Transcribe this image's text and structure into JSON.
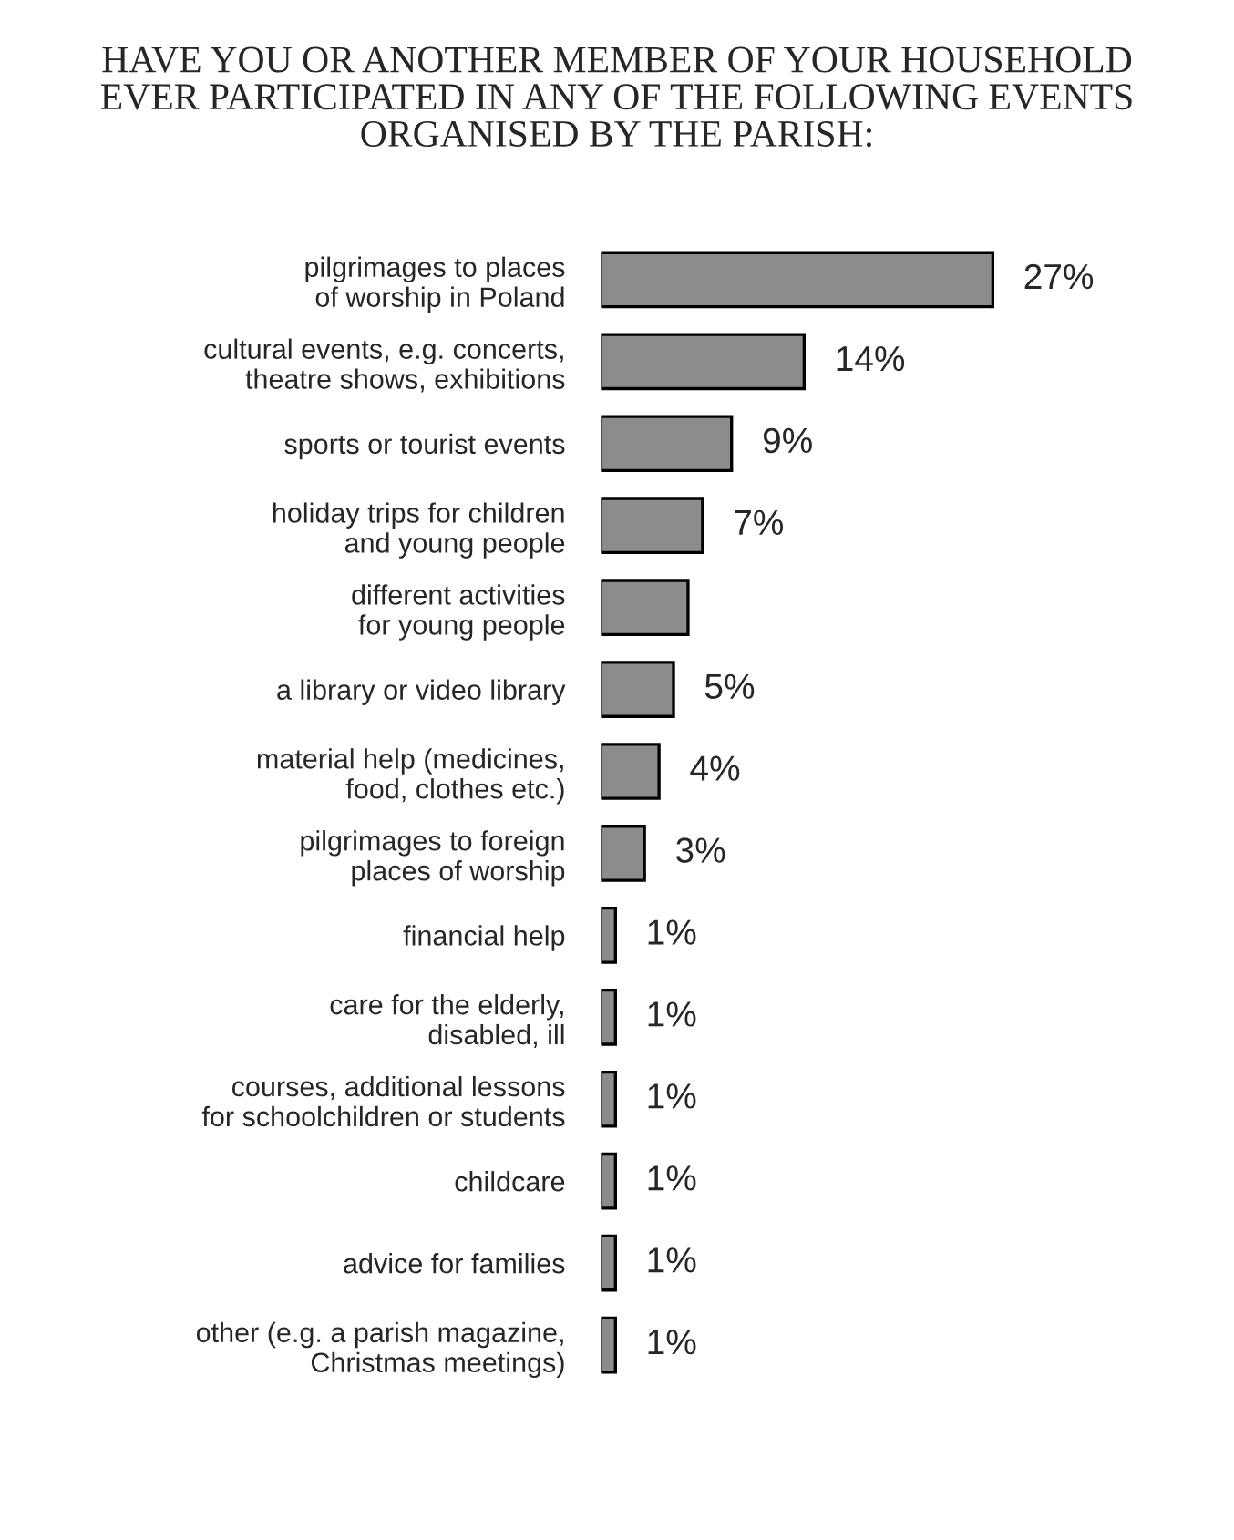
{
  "chart_data": {
    "type": "bar",
    "orientation": "horizontal",
    "title": "HAVE YOU OR ANOTHER MEMBER OF YOUR HOUSEHOLD\nEVER PARTICIPATED IN ANY OF THE FOLLOWING EVENTS\nORGANISED BY THE PARISH:",
    "categories": [
      "pilgrimages to places\nof worship in Poland",
      "cultural events, e.g. concerts,\ntheatre shows, exhibitions",
      "sports or tourist events",
      "holiday trips for children\nand young people",
      "different activities\nfor young people",
      "a library or video library",
      "material help (medicines,\nfood, clothes etc.)",
      "pilgrimages to foreign\nplaces of worship",
      "financial help",
      "care for the elderly,\ndisabled, ill",
      "courses, additional lessons\nfor schoolchildren or students",
      "childcare",
      "advice for families",
      "other (e.g. a parish magazine,\nChristmas meetings)"
    ],
    "values": [
      27,
      14,
      9,
      7,
      6,
      5,
      4,
      3,
      1,
      1,
      1,
      1,
      1,
      1
    ],
    "value_labels": [
      "27%",
      "14%",
      "9%",
      "7%",
      null,
      "5%",
      "4%",
      "3%",
      "1%",
      "1%",
      "1%",
      "1%",
      "1%",
      "1%"
    ],
    "color": "#8c8c8c",
    "grid": false,
    "legend": false
  }
}
